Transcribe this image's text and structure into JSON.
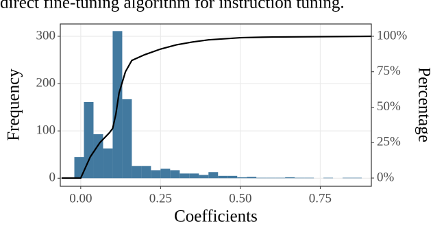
{
  "chart_data": {
    "type": "histogram",
    "context_text": "direct fine-tuning algorithm for instruction tuning.",
    "x_label": "Coefficients",
    "y_label": "Frequency",
    "y2_label": "Percentage",
    "color": "#42799f",
    "bins": [
      -0.02,
      0.01,
      0.04,
      0.07,
      0.1,
      0.13,
      0.16,
      0.19,
      0.22,
      0.25,
      0.28,
      0.31,
      0.34,
      0.37,
      0.4,
      0.43,
      0.46,
      0.49,
      0.52,
      0.55,
      0.58,
      0.61,
      0.64,
      0.67,
      0.7,
      0.73,
      0.76,
      0.79,
      0.82,
      0.85,
      0.88
    ],
    "values": [
      45,
      161,
      93,
      63,
      311,
      167,
      26,
      26,
      17,
      20,
      17,
      10,
      10,
      7,
      13,
      5,
      5,
      2,
      3,
      1,
      1,
      1,
      2,
      1,
      1,
      0,
      1,
      0,
      1,
      1
    ],
    "cumulative": {
      "type": "line",
      "axis": "y2",
      "color": "#000000",
      "x": [
        -0.06,
        0.0,
        0.01,
        0.03,
        0.06,
        0.09,
        0.1,
        0.11,
        0.12,
        0.14,
        0.16,
        0.2,
        0.25,
        0.3,
        0.35,
        0.4,
        0.5,
        0.6,
        0.91
      ],
      "values": [
        0,
        0,
        5,
        15,
        25,
        32,
        35,
        45,
        60,
        75,
        83,
        87,
        91,
        94,
        96,
        97.5,
        99,
        99.5,
        100
      ]
    },
    "xlim": [
      -0.064,
      0.91
    ],
    "xticks": [
      {
        "value": 0,
        "label": "0.00"
      },
      0.25,
      {
        "value": 0.5,
        "label": "0.50"
      },
      0.75
    ],
    "ylim": [
      -17,
      326
    ],
    "yticks": [
      0,
      100,
      200,
      300
    ],
    "y2lim": [
      -5.8,
      108.7
    ],
    "y2ticks": [
      {
        "value": 0,
        "label": "0%"
      },
      {
        "value": 25,
        "label": "25%"
      },
      {
        "value": 50,
        "label": "50%"
      },
      {
        "value": 75,
        "label": "75%"
      },
      {
        "value": 100,
        "label": "100%"
      }
    ],
    "grid": true
  }
}
